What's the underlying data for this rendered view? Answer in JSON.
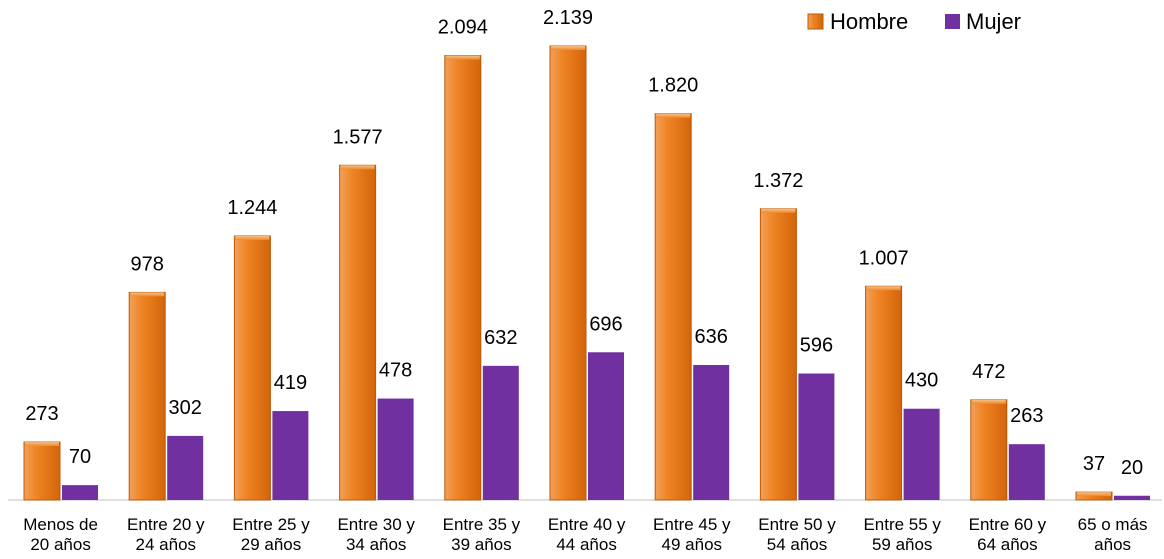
{
  "chart_data": {
    "type": "bar",
    "categories": [
      [
        "Menos de",
        "20 años"
      ],
      [
        "Entre 20 y",
        "24 años"
      ],
      [
        "Entre 25 y",
        "29 años"
      ],
      [
        "Entre 30 y",
        "34 años"
      ],
      [
        "Entre 35 y",
        "39 años"
      ],
      [
        "Entre 40 y",
        "44 años"
      ],
      [
        "Entre 45 y",
        "49 años"
      ],
      [
        "Entre 50 y",
        "54 años"
      ],
      [
        "Entre 55 y",
        "59 años"
      ],
      [
        "Entre 60 y",
        "64 años"
      ],
      [
        "65 o más",
        "años"
      ]
    ],
    "series": [
      {
        "name": "Hombre",
        "color": "#E8760F",
        "values": [
          273,
          978,
          1244,
          1577,
          2094,
          2139,
          1820,
          1372,
          1007,
          472,
          37
        ],
        "labels": [
          "273",
          "978",
          "1.244",
          "1.577",
          "2.094",
          "2.139",
          "1.820",
          "1.372",
          "1.007",
          "472",
          "37"
        ]
      },
      {
        "name": "Mujer",
        "color": "#7030A0",
        "values": [
          70,
          302,
          419,
          478,
          632,
          696,
          636,
          596,
          430,
          263,
          20
        ],
        "labels": [
          "70",
          "302",
          "419",
          "478",
          "632",
          "696",
          "636",
          "596",
          "430",
          "263",
          "20"
        ]
      }
    ],
    "title": "",
    "xlabel": "",
    "ylabel": "",
    "ylim": [
      0,
      2139
    ],
    "grid": false,
    "legend_position": "top-right"
  }
}
